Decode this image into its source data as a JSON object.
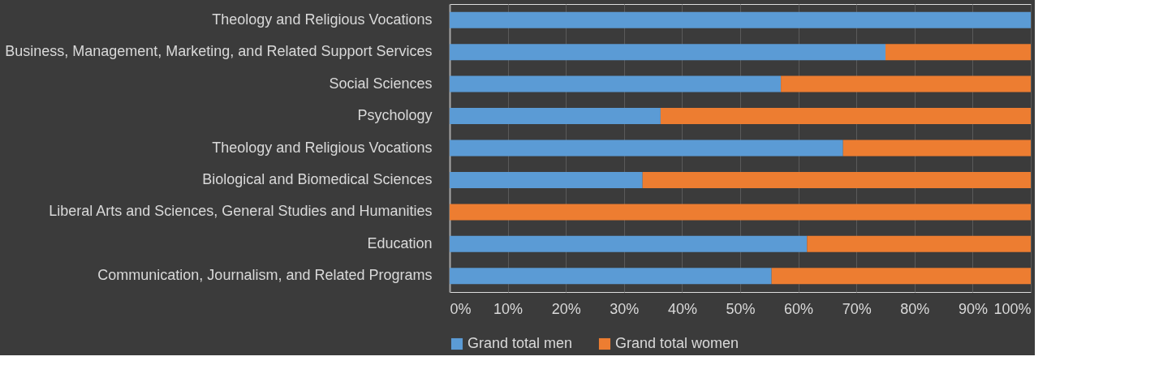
{
  "chart_data": {
    "type": "bar",
    "orientation": "horizontal",
    "stacked": true,
    "categories": [
      "Theology and Religious Vocations",
      "Business, Management, Marketing, and Related Support Services",
      "Social Sciences",
      "Psychology",
      "Theology and Religious Vocations",
      "Biological and Biomedical Sciences",
      "Liberal Arts and Sciences, General Studies and Humanities",
      "Education",
      "Communication, Journalism, and Related Programs"
    ],
    "series": [
      {
        "name": "Grand total men",
        "color": "#5b9bd5",
        "values": [
          100,
          75,
          57,
          36.3,
          67.7,
          33.2,
          0,
          61.5,
          55.4
        ]
      },
      {
        "name": "Grand total women",
        "color": "#ed7d31",
        "values": [
          0,
          25,
          43,
          63.7,
          32.3,
          66.8,
          100,
          38.5,
          44.6
        ]
      }
    ],
    "xlim": [
      0,
      100
    ],
    "xticks": [
      {
        "value": 0,
        "label": "0%"
      },
      {
        "value": 10,
        "label": "10%"
      },
      {
        "value": 20,
        "label": "20%"
      },
      {
        "value": 30,
        "label": "30%"
      },
      {
        "value": 40,
        "label": "40%"
      },
      {
        "value": 50,
        "label": "50%"
      },
      {
        "value": 60,
        "label": "60%"
      },
      {
        "value": 70,
        "label": "70%"
      },
      {
        "value": 80,
        "label": "80%"
      },
      {
        "value": 90,
        "label": "90%"
      },
      {
        "value": 100,
        "label": "100%"
      }
    ],
    "grid": "x",
    "legend": "bottom"
  }
}
